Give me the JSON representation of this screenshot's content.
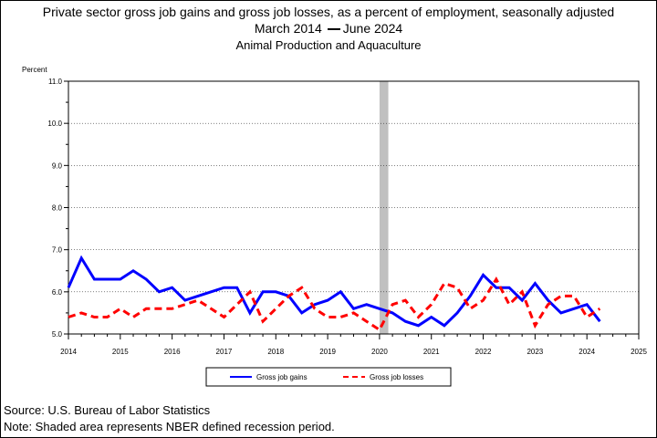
{
  "title": {
    "line1": "Private sector gross job gains and gross job losses, as a percent of employment, seasonally adjusted",
    "line2_start": "March 2014",
    "line2_end": "June 2024",
    "line3": "Animal Production and Aquaculture"
  },
  "footer": {
    "source": "Source: U.S. Bureau of Labor Statistics",
    "note": "Note: Shaded area represents NBER defined recession period."
  },
  "chart_data": {
    "type": "line",
    "ylabel": "Percent",
    "ylim": [
      5.0,
      11.0
    ],
    "yticks": [
      "5.0",
      "6.0",
      "7.0",
      "8.0",
      "9.0",
      "10.0",
      "11.0"
    ],
    "xlim": [
      2014,
      2025
    ],
    "xticks": [
      "2014",
      "2015",
      "2016",
      "2017",
      "2018",
      "2019",
      "2020",
      "2021",
      "2022",
      "2023",
      "2024",
      "2025"
    ],
    "recession": [
      2020.0,
      2020.17
    ],
    "grid": "horizontal",
    "legend_position": "bottom",
    "x": [
      "2014 Q1",
      "2014 Q2",
      "2014 Q3",
      "2014 Q4",
      "2015 Q1",
      "2015 Q2",
      "2015 Q3",
      "2015 Q4",
      "2016 Q1",
      "2016 Q2",
      "2016 Q3",
      "2016 Q4",
      "2017 Q1",
      "2017 Q2",
      "2017 Q3",
      "2017 Q4",
      "2018 Q1",
      "2018 Q2",
      "2018 Q3",
      "2018 Q4",
      "2019 Q1",
      "2019 Q2",
      "2019 Q3",
      "2019 Q4",
      "2020 Q1",
      "2020 Q2",
      "2020 Q3",
      "2020 Q4",
      "2021 Q1",
      "2021 Q2",
      "2021 Q3",
      "2021 Q4",
      "2022 Q1",
      "2022 Q2",
      "2022 Q3",
      "2022 Q4",
      "2023 Q1",
      "2023 Q2",
      "2023 Q3",
      "2023 Q4",
      "2024 Q1",
      "2024 Q2"
    ],
    "series": [
      {
        "name": "Gross job gains",
        "color": "#0000ff",
        "style": "solid",
        "values": [
          6.1,
          6.8,
          6.3,
          6.3,
          6.3,
          6.5,
          6.3,
          6.0,
          6.1,
          5.8,
          5.9,
          6.0,
          6.1,
          6.1,
          5.5,
          6.0,
          6.0,
          5.9,
          5.5,
          5.7,
          5.8,
          6.0,
          5.6,
          5.7,
          5.6,
          5.5,
          5.3,
          5.2,
          5.4,
          5.2,
          5.5,
          5.9,
          6.4,
          6.1,
          6.1,
          5.8,
          6.2,
          5.8,
          5.5,
          5.6,
          5.7,
          5.3
        ]
      },
      {
        "name": "Gross job losses",
        "color": "#ff0000",
        "style": "dashed",
        "values": [
          5.4,
          5.5,
          5.4,
          5.4,
          5.6,
          5.4,
          5.6,
          5.6,
          5.6,
          5.7,
          5.8,
          5.6,
          5.4,
          5.7,
          6.0,
          5.3,
          5.6,
          5.9,
          6.1,
          5.6,
          5.4,
          5.4,
          5.5,
          5.3,
          5.1,
          5.7,
          5.8,
          5.4,
          5.7,
          6.2,
          6.1,
          5.6,
          5.8,
          6.3,
          5.7,
          6.0,
          5.2,
          5.7,
          5.9,
          5.9,
          5.4,
          5.6
        ]
      }
    ]
  }
}
